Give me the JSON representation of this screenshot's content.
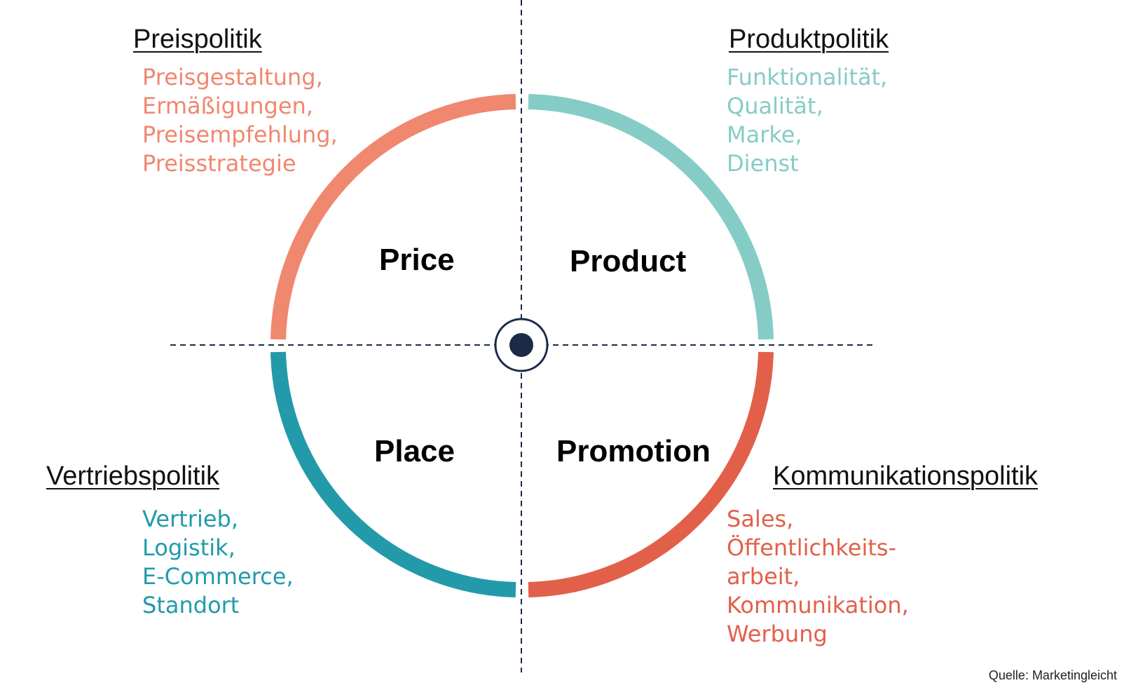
{
  "colors": {
    "price": "#F0876F",
    "product": "#86CCC6",
    "place": "#229AAA",
    "promotion": "#E2604A",
    "axis": "#1B2A47",
    "center": "#1B2A47"
  },
  "quadrants": {
    "price": {
      "label": "Price",
      "heading": "Preispolitik",
      "items": [
        "Preisgestaltung,",
        "Ermäßigungen,",
        "Preisempfehlung,",
        "Preisstrategie"
      ]
    },
    "product": {
      "label": "Product",
      "heading": "Produktpolitik",
      "items": [
        "Funktionalität,",
        "Qualität,",
        "Marke,",
        "Dienst"
      ]
    },
    "place": {
      "label": "Place",
      "heading": "Vertriebspolitik",
      "items": [
        "Vertrieb,",
        "Logistik,",
        "E-Commerce,",
        "Standort"
      ]
    },
    "promotion": {
      "label": "Promotion",
      "heading": "Kommunikationspolitik",
      "items": [
        "Sales,",
        "Öffentlichkeits-",
        "arbeit,",
        "Kommunikation,",
        "Werbung"
      ]
    }
  },
  "source": "Quelle: Marketingleicht"
}
